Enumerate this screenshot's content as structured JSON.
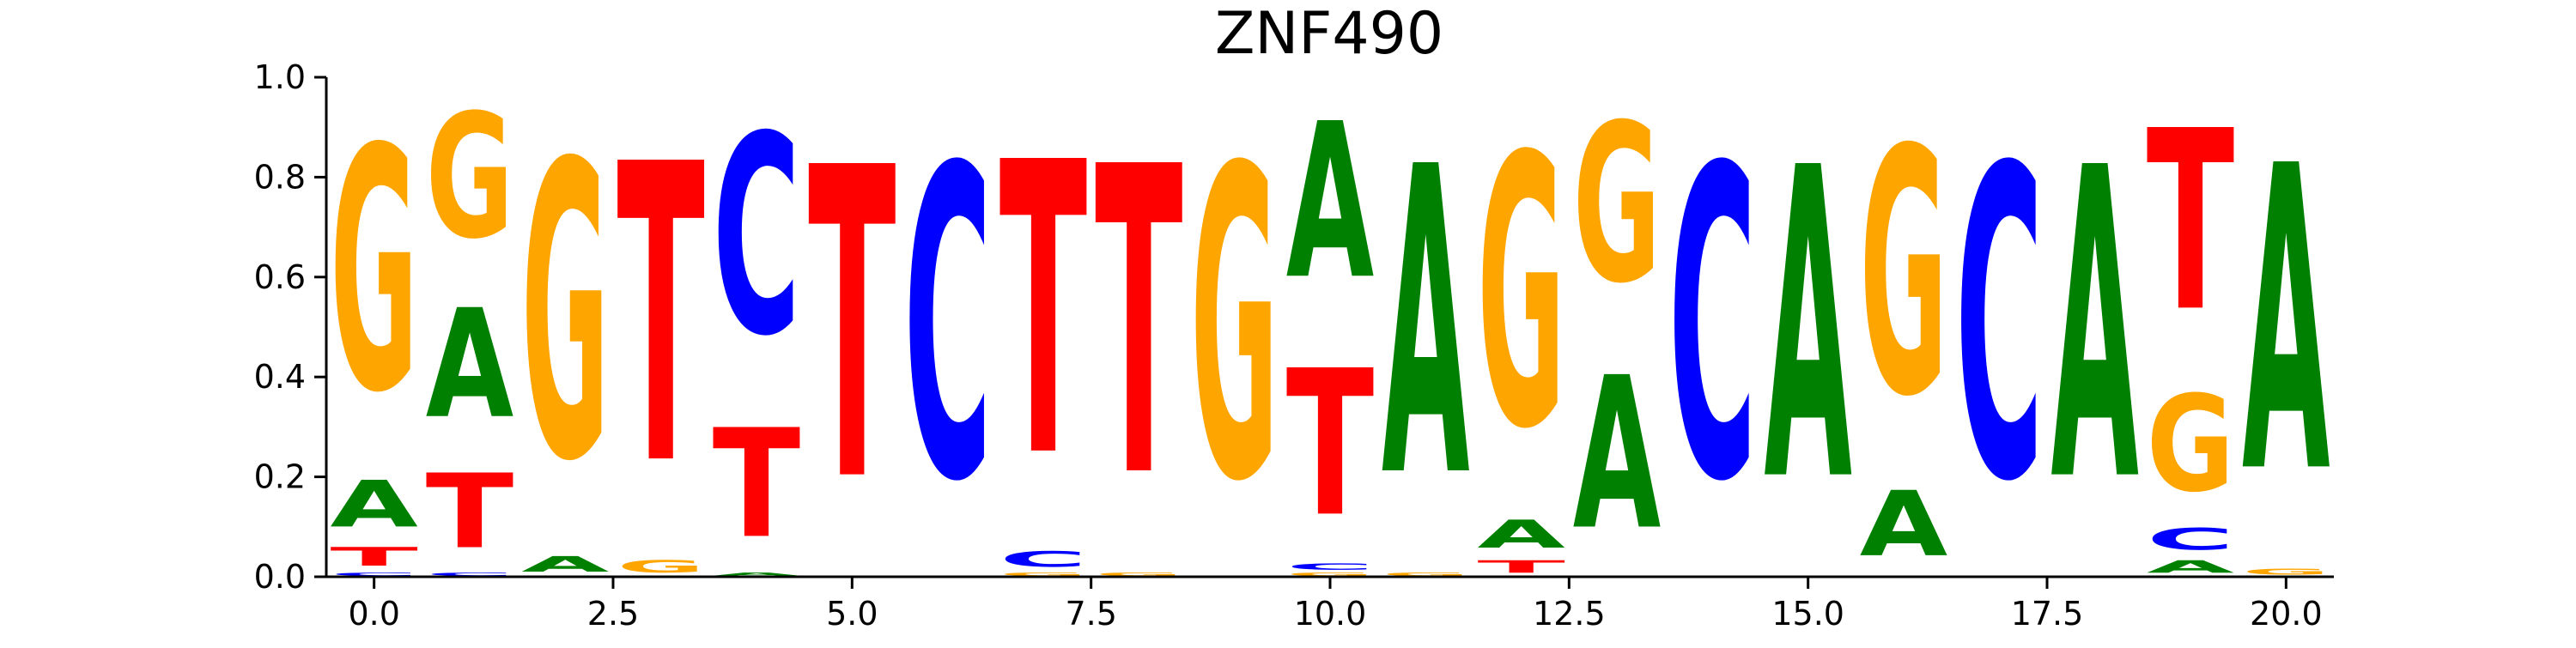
{
  "chart_data": {
    "type": "sequence-logo",
    "title": "ZNF490",
    "xlabel": "",
    "ylabel": "",
    "xlim": [
      -0.5,
      20.5
    ],
    "ylim": [
      0,
      1
    ],
    "x_ticks": [
      "0.0",
      "2.5",
      "5.0",
      "7.5",
      "10.0",
      "12.5",
      "15.0",
      "17.5",
      "20.0"
    ],
    "x_tick_values": [
      0,
      2.5,
      5,
      7.5,
      10,
      12.5,
      15,
      17.5,
      20
    ],
    "y_ticks": [
      "0.0",
      "0.2",
      "0.4",
      "0.6",
      "0.8",
      "1.0"
    ],
    "y_tick_values": [
      0,
      0.2,
      0.4,
      0.6,
      0.8,
      1.0
    ],
    "letter_colors": {
      "A": "#008000",
      "C": "#0000ff",
      "G": "#ffa500",
      "T": "#ff0000"
    },
    "positions": [
      {
        "pos": 0,
        "letters": [
          [
            "C",
            0.01
          ],
          [
            "T",
            0.06
          ],
          [
            "A",
            0.15
          ],
          [
            "G",
            0.78
          ]
        ]
      },
      {
        "pos": 1,
        "letters": [
          [
            "C",
            0.01
          ],
          [
            "T",
            0.24
          ],
          [
            "A",
            0.35
          ],
          [
            "G",
            0.4
          ]
        ]
      },
      {
        "pos": 2,
        "letters": [
          [
            "A",
            0.05
          ],
          [
            "G",
            0.95
          ]
        ]
      },
      {
        "pos": 3,
        "letters": [
          [
            "G",
            0.04
          ],
          [
            "T",
            0.96
          ]
        ]
      },
      {
        "pos": 4,
        "letters": [
          [
            "A",
            0.01
          ],
          [
            "T",
            0.35
          ],
          [
            "C",
            0.64
          ]
        ]
      },
      {
        "pos": 5,
        "letters": [
          [
            "T",
            1.0
          ]
        ]
      },
      {
        "pos": 6,
        "letters": [
          [
            "C",
            1.0
          ]
        ]
      },
      {
        "pos": 7,
        "letters": [
          [
            "G",
            0.01
          ],
          [
            "C",
            0.05
          ],
          [
            "T",
            0.94
          ]
        ]
      },
      {
        "pos": 8,
        "letters": [
          [
            "G",
            0.01
          ],
          [
            "T",
            0.99
          ]
        ]
      },
      {
        "pos": 9,
        "letters": [
          [
            "G",
            1.0
          ]
        ]
      },
      {
        "pos": 10,
        "letters": [
          [
            "G",
            0.01
          ],
          [
            "C",
            0.02
          ],
          [
            "T",
            0.47
          ],
          [
            "A",
            0.5
          ]
        ]
      },
      {
        "pos": 11,
        "letters": [
          [
            "G",
            0.01
          ],
          [
            "A",
            0.99
          ]
        ]
      },
      {
        "pos": 12,
        "letters": [
          [
            "T",
            0.04
          ],
          [
            "A",
            0.09
          ],
          [
            "G",
            0.87
          ]
        ]
      },
      {
        "pos": 13,
        "letters": [
          [
            "A",
            0.49
          ],
          [
            "G",
            0.51
          ]
        ]
      },
      {
        "pos": 14,
        "letters": [
          [
            "C",
            1.0
          ]
        ]
      },
      {
        "pos": 15,
        "letters": [
          [
            "A",
            1.0
          ]
        ]
      },
      {
        "pos": 16,
        "letters": [
          [
            "A",
            0.21
          ],
          [
            "G",
            0.79
          ]
        ]
      },
      {
        "pos": 17,
        "letters": [
          [
            "C",
            1.0
          ]
        ]
      },
      {
        "pos": 18,
        "letters": [
          [
            "A",
            1.0
          ]
        ]
      },
      {
        "pos": 19,
        "letters": [
          [
            "A",
            0.04
          ],
          [
            "C",
            0.07
          ],
          [
            "G",
            0.31
          ],
          [
            "T",
            0.58
          ]
        ]
      },
      {
        "pos": 20,
        "letters": [
          [
            "G",
            0.02
          ],
          [
            "A",
            0.98
          ]
        ]
      }
    ]
  }
}
